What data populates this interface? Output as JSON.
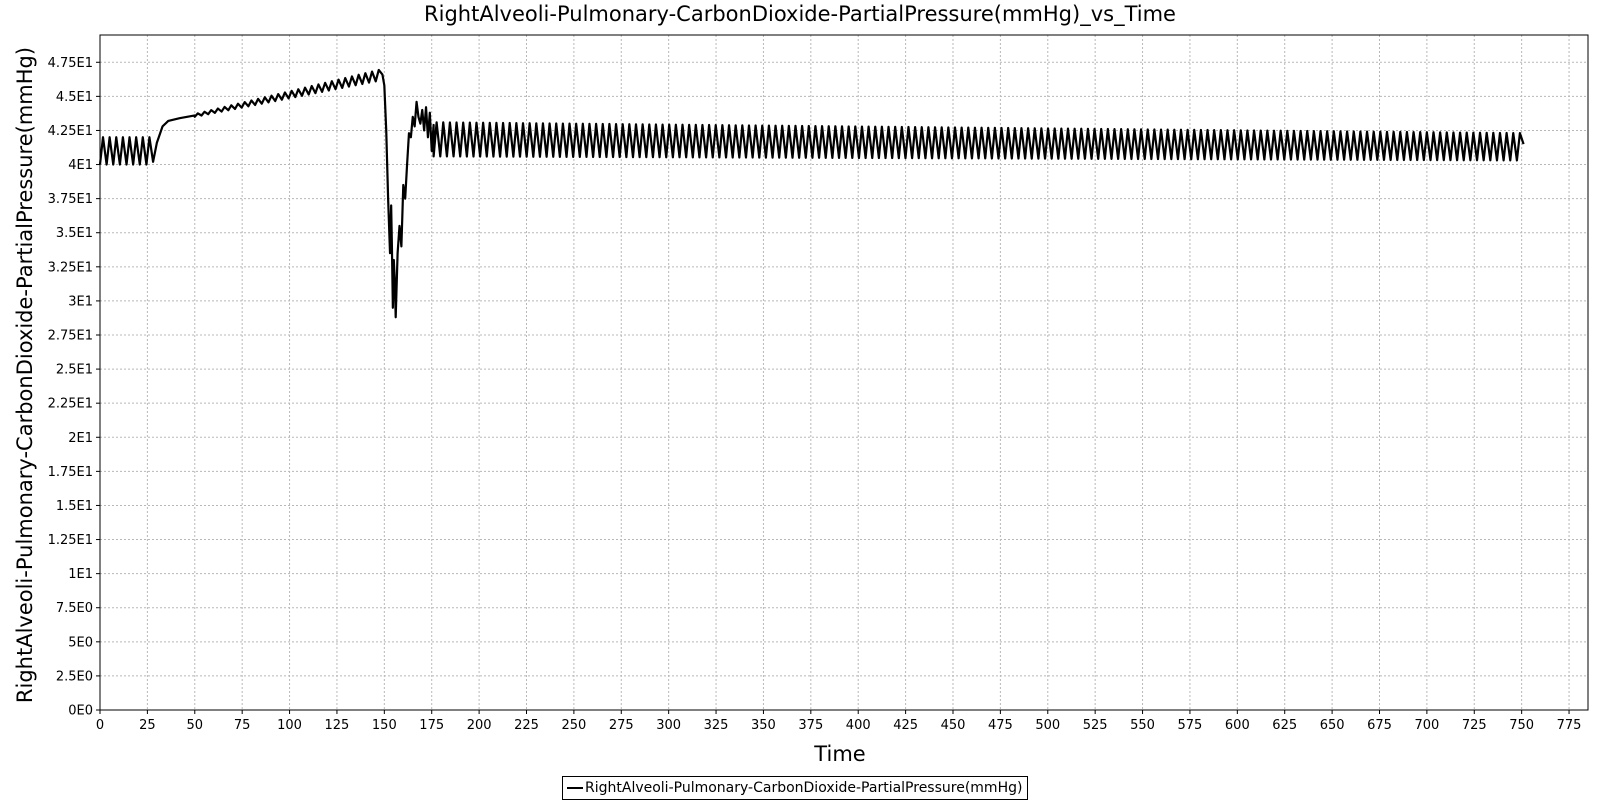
{
  "chart_data": {
    "type": "line",
    "title": "RightAlveoli-Pulmonary-CarbonDioxide-PartialPressure(mmHg)_vs_Time",
    "xlabel": "Time",
    "ylabel": "RightAlveoli-Pulmonary-CarbonDioxide-PartialPressure(mmHg)",
    "xlim": [
      0,
      785
    ],
    "ylim": [
      0,
      49.5
    ],
    "x_ticks": [
      0,
      25,
      50,
      75,
      100,
      125,
      150,
      175,
      200,
      225,
      250,
      275,
      300,
      325,
      350,
      375,
      400,
      425,
      450,
      475,
      500,
      525,
      550,
      575,
      600,
      625,
      650,
      675,
      700,
      725,
      750,
      775
    ],
    "x_tick_labels": [
      "0",
      "25",
      "50",
      "75",
      "100",
      "125",
      "150",
      "175",
      "200",
      "225",
      "250",
      "275",
      "300",
      "325",
      "350",
      "375",
      "400",
      "425",
      "450",
      "475",
      "500",
      "525",
      "550",
      "575",
      "600",
      "625",
      "650",
      "675",
      "700",
      "725",
      "750",
      "775"
    ],
    "y_ticks": [
      0,
      2.5,
      5,
      7.5,
      10,
      12.5,
      15,
      17.5,
      20,
      22.5,
      25,
      27.5,
      30,
      32.5,
      35,
      37.5,
      40,
      42.5,
      45,
      47.5
    ],
    "y_tick_labels": [
      "0E0",
      "2.5E0",
      "5E0",
      "7.5E0",
      "1E1",
      "1.25E1",
      "1.5E1",
      "1.75E1",
      "2E1",
      "2.25E1",
      "2.5E1",
      "2.75E1",
      "3E1",
      "3.25E1",
      "3.5E1",
      "3.75E1",
      "4E1",
      "4.25E1",
      "4.5E1",
      "4.75E1"
    ],
    "grid": true,
    "legend_position": "bottom-center",
    "series": [
      {
        "name": "RightAlveoli-Pulmonary-CarbonDioxide-PartialPressure(mmHg)",
        "color": "#000000",
        "breath_period_s": 3.5,
        "segments": [
          {
            "phase": "oscillation",
            "t_start": 0,
            "t_end": 28,
            "low": 40.0,
            "high": 42.0
          },
          {
            "phase": "ramp",
            "points": [
              [
                28,
                40.2
              ],
              [
                30,
                41.6
              ],
              [
                33,
                42.8
              ],
              [
                36,
                43.2
              ],
              [
                42,
                43.4
              ],
              [
                50,
                43.6
              ]
            ]
          },
          {
            "phase": "rising-oscillation",
            "t_start": 50,
            "t_end": 149,
            "low_start": 43.5,
            "low_end": 46.2,
            "high_start": 43.7,
            "high_end": 47.0
          },
          {
            "phase": "drop-and-recovery",
            "points": [
              [
                149,
                46.6
              ],
              [
                150,
                45.8
              ],
              [
                151,
                42.5
              ],
              [
                152,
                37.5
              ],
              [
                153,
                33.5
              ],
              [
                153.6,
                37.0
              ],
              [
                154,
                34.0
              ],
              [
                154.5,
                29.5
              ],
              [
                155,
                33.0
              ],
              [
                155.5,
                31.5
              ],
              [
                156,
                28.8
              ],
              [
                157,
                33.5
              ],
              [
                158,
                35.5
              ],
              [
                159,
                34.0
              ],
              [
                160,
                38.5
              ],
              [
                161,
                37.5
              ],
              [
                162,
                40.0
              ],
              [
                163,
                42.3
              ],
              [
                164,
                42.0
              ],
              [
                165,
                43.5
              ],
              [
                166,
                42.8
              ],
              [
                167,
                44.6
              ],
              [
                168,
                43.5
              ],
              [
                169,
                43.0
              ],
              [
                170,
                44.0
              ],
              [
                171,
                42.5
              ],
              [
                172,
                44.2
              ],
              [
                173,
                42.0
              ],
              [
                174,
                43.8
              ],
              [
                175,
                41.0
              ],
              [
                176,
                42.9
              ]
            ]
          },
          {
            "phase": "steady-oscillation",
            "t_start": 176,
            "t_end": 751,
            "low_start": 40.6,
            "low_end": 40.3,
            "high_start": 43.1,
            "high_end": 42.3
          }
        ],
        "end_value": 41.5
      }
    ]
  }
}
